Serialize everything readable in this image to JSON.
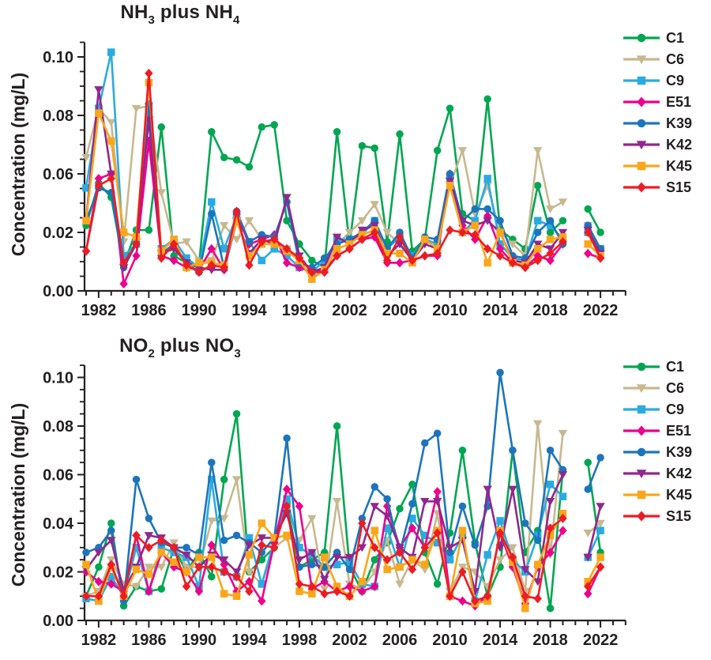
{
  "figure": {
    "background": "#ffffff",
    "text_color": "#231f20",
    "ylabel": "Concentration (mg/L)",
    "x_tick_labels": [
      "1982",
      "1986",
      "1990",
      "1994",
      "1998",
      "2002",
      "2006",
      "2010",
      "2014",
      "2018",
      "2022"
    ],
    "legend_labels": [
      "C1",
      "C6",
      "C9",
      "E51",
      "K39",
      "K42",
      "K45",
      "S15"
    ],
    "series_colors": {
      "C1": "#00a651",
      "C6": "#c7b88f",
      "C9": "#29abe2",
      "E51": "#ec008c",
      "K39": "#1c75bc",
      "K42": "#90278e",
      "K45": "#faa61a",
      "S15": "#ed1c24"
    },
    "series_markers": {
      "C1": "circle",
      "C6": "triangle-down",
      "C9": "square",
      "E51": "diamond",
      "K39": "circle",
      "K42": "triangle-down",
      "K45": "square",
      "S15": "diamond"
    }
  },
  "chart_data": [
    {
      "type": "line",
      "title": "NH3 plus NH4",
      "title_runs": [
        {
          "t": "NH"
        },
        {
          "s": "3"
        },
        {
          "t": " plus NH"
        },
        {
          "s": "4"
        }
      ],
      "ylabel": "Concentration (mg/L)",
      "ylim": [
        0,
        0.105
      ],
      "y_tick_labels_top_to_bottom": [
        "0.10",
        "0.08",
        "0.06",
        "0.02",
        "0.00"
      ],
      "x_axis_years": [
        1981,
        2024
      ],
      "missing_year_gap": 2020,
      "x": [
        1981,
        1982,
        1983,
        1984,
        1985,
        1986,
        1987,
        1988,
        1989,
        1990,
        1991,
        1992,
        1993,
        1994,
        1995,
        1996,
        1997,
        1998,
        1999,
        2000,
        2001,
        2002,
        2003,
        2004,
        2005,
        2006,
        2007,
        2008,
        2009,
        2010,
        2011,
        2012,
        2013,
        2014,
        2015,
        2016,
        2017,
        2018,
        2019,
        2020,
        2021,
        2022
      ],
      "series": [
        {
          "name": "C1",
          "color": "#00a651",
          "marker": "circle",
          "values": [
            0.028,
            0.046,
            0.04,
            0.011,
            0.026,
            0.026,
            0.07,
            0.015,
            0.012,
            0.011,
            0.068,
            0.057,
            0.056,
            0.053,
            0.07,
            0.071,
            0.03,
            0.02,
            0.013,
            0.01,
            0.068,
            0.02,
            0.062,
            0.061,
            0.021,
            0.067,
            0.017,
            0.022,
            0.06,
            0.078,
            0.033,
            0.03,
            0.082,
            0.026,
            0.022,
            0.018,
            0.045,
            0.025,
            0.03,
            null,
            0.035,
            0.025
          ]
        },
        {
          "name": "C6",
          "color": "#c7b88f",
          "marker": "triangle-down",
          "values": [
            0.057,
            0.078,
            0.072,
            0.021,
            0.078,
            0.079,
            0.042,
            0.02,
            0.021,
            0.013,
            0.013,
            0.028,
            0.022,
            0.03,
            0.022,
            0.021,
            0.018,
            0.013,
            0.005,
            0.01,
            0.02,
            0.025,
            0.03,
            0.037,
            0.025,
            0.02,
            0.015,
            0.022,
            0.02,
            0.045,
            0.06,
            0.033,
            0.045,
            0.025,
            0.02,
            0.015,
            0.06,
            0.035,
            0.038,
            null,
            0.028,
            0.017
          ]
        },
        {
          "name": "C9",
          "color": "#29abe2",
          "marker": "square",
          "values": [
            0.044,
            0.078,
            0.102,
            0.015,
            0.02,
            0.078,
            0.018,
            0.022,
            0.014,
            0.01,
            0.038,
            0.018,
            0.032,
            0.021,
            0.013,
            0.018,
            0.015,
            0.01,
            0.008,
            0.013,
            0.022,
            0.022,
            0.024,
            0.03,
            0.018,
            0.023,
            0.015,
            0.022,
            0.02,
            0.048,
            0.025,
            0.03,
            0.048,
            0.02,
            0.014,
            0.013,
            0.03,
            0.028,
            0.022,
            null,
            0.025,
            0.018
          ]
        },
        {
          "name": "E51",
          "color": "#ec008c",
          "marker": "diamond",
          "values": [
            0.017,
            0.048,
            0.05,
            0.003,
            0.015,
            0.064,
            0.015,
            0.013,
            0.01,
            0.009,
            0.018,
            0.009,
            0.033,
            0.02,
            0.022,
            0.024,
            0.012,
            0.01,
            0.008,
            0.009,
            0.015,
            0.018,
            0.022,
            0.023,
            0.012,
            0.012,
            0.013,
            0.015,
            0.015,
            0.05,
            0.028,
            0.022,
            0.032,
            0.018,
            0.012,
            0.01,
            0.015,
            0.013,
            0.02,
            null,
            0.016,
            0.014
          ]
        },
        {
          "name": "K39",
          "color": "#1c75bc",
          "marker": "circle",
          "values": [
            0.03,
            0.044,
            0.042,
            0.01,
            0.02,
            0.08,
            0.016,
            0.02,
            0.012,
            0.008,
            0.033,
            0.01,
            0.034,
            0.021,
            0.024,
            0.023,
            0.038,
            0.012,
            0.01,
            0.014,
            0.02,
            0.022,
            0.025,
            0.03,
            0.018,
            0.025,
            0.014,
            0.023,
            0.022,
            0.05,
            0.03,
            0.035,
            0.035,
            0.03,
            0.015,
            0.014,
            0.025,
            0.03,
            0.02,
            null,
            0.028,
            0.018
          ]
        },
        {
          "name": "K42",
          "color": "#90278e",
          "marker": "triangle-down",
          "values": [
            0.03,
            0.086,
            0.05,
            0.01,
            0.021,
            0.073,
            0.016,
            0.018,
            0.012,
            0.01,
            0.009,
            0.009,
            0.03,
            0.016,
            0.022,
            0.02,
            0.04,
            0.015,
            0.008,
            0.01,
            0.023,
            0.02,
            0.026,
            0.028,
            0.015,
            0.02,
            0.013,
            0.02,
            0.018,
            0.047,
            0.03,
            0.028,
            0.03,
            0.025,
            0.013,
            0.012,
            0.02,
            0.018,
            0.025,
            null,
            0.026,
            0.016
          ]
        },
        {
          "name": "K45",
          "color": "#faa61a",
          "marker": "square",
          "values": [
            0.03,
            0.076,
            0.064,
            0.025,
            0.023,
            0.089,
            0.017,
            0.022,
            0.01,
            0.012,
            0.012,
            0.011,
            0.03,
            0.015,
            0.02,
            0.02,
            0.017,
            0.013,
            0.005,
            0.009,
            0.018,
            0.02,
            0.024,
            0.026,
            0.016,
            0.016,
            0.012,
            0.022,
            0.018,
            0.045,
            0.025,
            0.028,
            0.012,
            0.025,
            0.012,
            0.011,
            0.018,
            0.022,
            0.023,
            null,
            0.02,
            0.015
          ]
        },
        {
          "name": "S15",
          "color": "#ed1c24",
          "marker": "diamond",
          "values": [
            0.017,
            0.045,
            0.048,
            0.012,
            0.02,
            0.093,
            0.014,
            0.02,
            0.011,
            0.008,
            0.011,
            0.01,
            0.034,
            0.011,
            0.021,
            0.022,
            0.018,
            0.014,
            0.008,
            0.008,
            0.015,
            0.018,
            0.022,
            0.025,
            0.013,
            0.023,
            0.013,
            0.015,
            0.016,
            0.026,
            0.025,
            0.024,
            0.018,
            0.015,
            0.012,
            0.01,
            0.013,
            0.016,
            0.021,
            null,
            0.025,
            0.014
          ]
        }
      ]
    },
    {
      "type": "line",
      "title": "NO2 plus NO3",
      "title_runs": [
        {
          "t": "NO"
        },
        {
          "s": "2"
        },
        {
          "t": " plus NO"
        },
        {
          "s": "3"
        }
      ],
      "ylabel": "Concentration (mg/L)",
      "ylim": [
        0,
        0.105
      ],
      "y_tick_labels_top_to_bottom": [
        "0.10",
        "0.08",
        "0.06",
        "0.04",
        "0.02",
        "0.00"
      ],
      "x_axis_years": [
        1981,
        2024
      ],
      "missing_year_gap": 2020,
      "x": [
        1981,
        1982,
        1983,
        1984,
        1985,
        1986,
        1987,
        1988,
        1989,
        1990,
        1991,
        1992,
        1993,
        1994,
        1995,
        1996,
        1997,
        1998,
        1999,
        2000,
        2001,
        2002,
        2003,
        2004,
        2005,
        2006,
        2007,
        2008,
        2009,
        2010,
        2011,
        2012,
        2013,
        2014,
        2015,
        2016,
        2017,
        2018,
        2019,
        2020,
        2021,
        2022
      ],
      "series": [
        {
          "name": "C1",
          "color": "#00a651",
          "marker": "circle",
          "values": [
            0.01,
            0.022,
            0.04,
            0.006,
            0.014,
            0.012,
            0.013,
            0.03,
            0.02,
            0.028,
            0.018,
            0.058,
            0.085,
            0.02,
            0.025,
            0.03,
            0.048,
            0.022,
            0.025,
            0.028,
            0.08,
            0.022,
            0.012,
            0.025,
            0.032,
            0.046,
            0.056,
            0.028,
            0.015,
            0.036,
            0.07,
            0.032,
            0.01,
            0.022,
            0.07,
            0.028,
            0.037,
            0.005,
            0.062,
            null,
            0.065,
            0.028
          ]
        },
        {
          "name": "C6",
          "color": "#c7b88f",
          "marker": "triangle-down",
          "values": [
            0.01,
            0.012,
            0.025,
            0.015,
            0.014,
            0.022,
            0.022,
            0.032,
            0.022,
            0.022,
            0.041,
            0.042,
            0.058,
            0.02,
            0.015,
            0.03,
            0.034,
            0.033,
            0.042,
            0.013,
            0.049,
            0.015,
            0.013,
            0.02,
            0.033,
            0.015,
            0.025,
            0.021,
            0.044,
            0.012,
            0.022,
            0.02,
            0.014,
            0.025,
            0.03,
            0.012,
            0.081,
            0.027,
            0.077,
            null,
            0.036,
            0.04
          ]
        },
        {
          "name": "C9",
          "color": "#29abe2",
          "marker": "square",
          "values": [
            0.009,
            0.008,
            0.018,
            0.01,
            0.03,
            0.012,
            0.03,
            0.028,
            0.026,
            0.014,
            0.058,
            0.02,
            0.018,
            0.034,
            0.015,
            0.033,
            0.05,
            0.03,
            0.027,
            0.022,
            0.023,
            0.024,
            0.015,
            0.014,
            0.038,
            0.022,
            0.042,
            0.035,
            0.032,
            0.025,
            0.035,
            0.008,
            0.027,
            0.041,
            0.025,
            0.02,
            0.035,
            0.056,
            0.051,
            null,
            0.026,
            0.037
          ]
        },
        {
          "name": "E51",
          "color": "#ec008c",
          "marker": "diamond",
          "values": [
            0.02,
            0.016,
            0.015,
            0.012,
            0.035,
            0.012,
            0.028,
            0.022,
            0.02,
            0.012,
            0.031,
            0.023,
            0.012,
            0.016,
            0.008,
            0.032,
            0.054,
            0.047,
            0.013,
            0.016,
            0.012,
            0.014,
            0.012,
            0.014,
            0.047,
            0.03,
            0.038,
            0.03,
            0.053,
            0.01,
            0.008,
            0.006,
            0.01,
            0.036,
            0.022,
            0.007,
            0.022,
            0.028,
            0.037,
            null,
            0.011,
            0.022
          ]
        },
        {
          "name": "K39",
          "color": "#1c75bc",
          "marker": "circle",
          "values": [
            0.028,
            0.03,
            0.037,
            0.008,
            0.058,
            0.042,
            0.032,
            0.03,
            0.03,
            0.027,
            0.065,
            0.033,
            0.035,
            0.032,
            0.028,
            0.034,
            0.075,
            0.022,
            0.023,
            0.022,
            0.028,
            0.021,
            0.042,
            0.055,
            0.05,
            0.028,
            0.048,
            0.073,
            0.077,
            0.028,
            0.047,
            0.031,
            0.047,
            0.102,
            0.07,
            0.04,
            0.033,
            0.07,
            0.062,
            null,
            0.054,
            0.067
          ]
        },
        {
          "name": "K42",
          "color": "#90278e",
          "marker": "triangle-down",
          "values": [
            0.021,
            0.028,
            0.033,
            0.012,
            0.022,
            0.035,
            0.034,
            0.03,
            0.027,
            0.022,
            0.027,
            0.025,
            0.02,
            0.031,
            0.034,
            0.034,
            0.044,
            0.025,
            0.028,
            0.017,
            0.026,
            0.026,
            0.03,
            0.047,
            0.043,
            0.03,
            0.026,
            0.049,
            0.049,
            0.03,
            0.033,
            0.012,
            0.054,
            0.03,
            0.054,
            0.021,
            0.016,
            0.049,
            0.06,
            null,
            0.026,
            0.047
          ]
        },
        {
          "name": "K45",
          "color": "#faa61a",
          "marker": "square",
          "values": [
            0.023,
            0.008,
            0.022,
            0.01,
            0.021,
            0.019,
            0.028,
            0.024,
            0.02,
            0.026,
            0.026,
            0.011,
            0.01,
            0.027,
            0.04,
            0.034,
            0.035,
            0.012,
            0.011,
            0.026,
            0.014,
            0.01,
            0.016,
            0.037,
            0.021,
            0.022,
            0.025,
            0.023,
            0.037,
            0.01,
            0.037,
            0.007,
            0.008,
            0.037,
            0.024,
            0.005,
            0.023,
            0.035,
            0.044,
            null,
            0.016,
            0.026
          ]
        },
        {
          "name": "S15",
          "color": "#ed1c24",
          "marker": "diamond",
          "values": [
            0.01,
            0.01,
            0.023,
            0.01,
            0.035,
            0.03,
            0.033,
            0.03,
            0.014,
            0.022,
            0.022,
            0.02,
            0.018,
            0.012,
            0.031,
            0.03,
            0.047,
            0.015,
            0.014,
            0.011,
            0.012,
            0.01,
            0.04,
            0.03,
            0.025,
            0.028,
            0.021,
            0.03,
            0.036,
            0.01,
            0.02,
            0.008,
            0.01,
            0.036,
            0.026,
            0.01,
            0.009,
            0.038,
            0.042,
            null,
            0.014,
            0.022
          ]
        }
      ]
    }
  ]
}
